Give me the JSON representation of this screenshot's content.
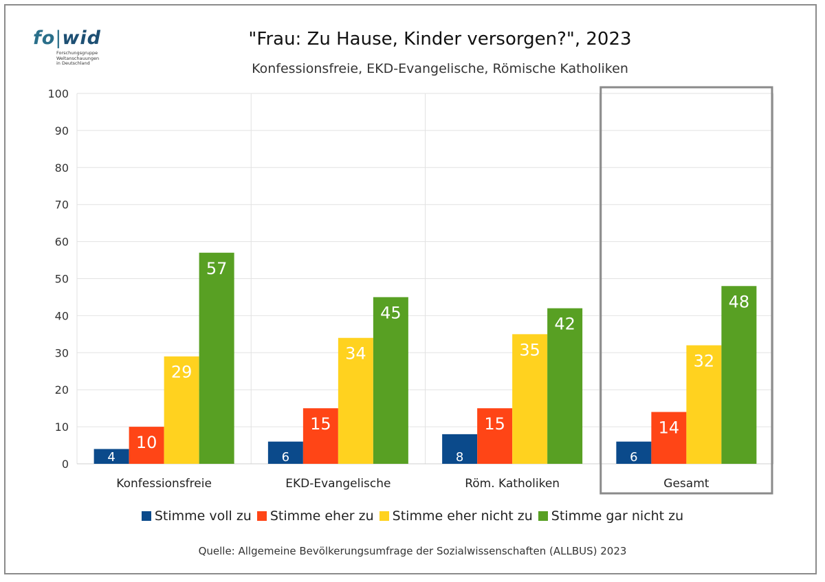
{
  "logo": {
    "word_fo": "fo",
    "word_bar": "|",
    "word_wid": "wid",
    "sub_lines": [
      "Forschungsgruppe",
      "Weltanschauungen",
      "in Deutschland"
    ]
  },
  "chart_data": {
    "type": "bar",
    "title": "\"Frau: Zu Hause, Kinder versorgen?\", 2023",
    "subtitle": "Konfessionsfreie, EKD-Evangelische, Römische Katholiken",
    "categories": [
      "Konfessionsfreie",
      "EKD-Evangelische",
      "Röm. Katholiken",
      "Gesamt"
    ],
    "highlighted_category": "Gesamt",
    "series": [
      {
        "name": "Stimme voll zu",
        "color": "#0b4a8b",
        "values": [
          4,
          6,
          8,
          6
        ]
      },
      {
        "name": "Stimme eher zu",
        "color": "#ff4516",
        "values": [
          10,
          15,
          15,
          14
        ]
      },
      {
        "name": "Stimme eher nicht zu",
        "color": "#ffd21f",
        "values": [
          29,
          34,
          35,
          32
        ]
      },
      {
        "name": "Stimme gar nicht zu",
        "color": "#58a023",
        "values": [
          57,
          45,
          42,
          48
        ]
      }
    ],
    "ylim": [
      0,
      100
    ],
    "yticks": [
      0,
      10,
      20,
      30,
      40,
      50,
      60,
      70,
      80,
      90,
      100
    ],
    "grid": true,
    "legend_position": "bottom",
    "data_labels": true
  },
  "source": "Quelle: Allgemeine Bevölkerungsumfrage der Sozialwissenschaften (ALLBUS) 2023"
}
